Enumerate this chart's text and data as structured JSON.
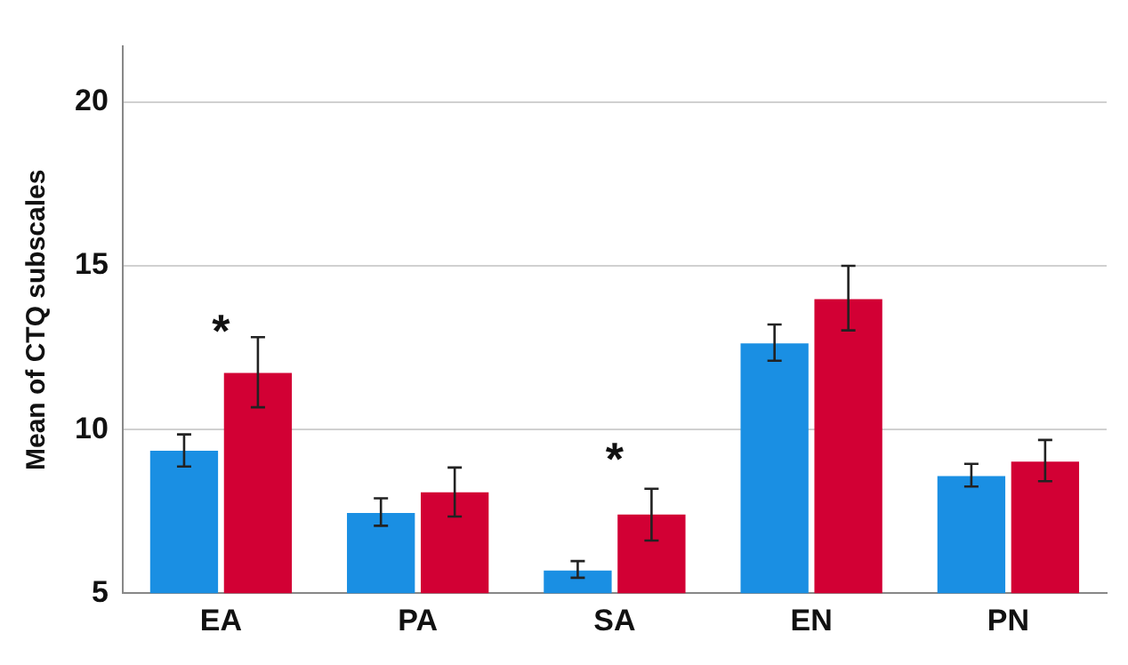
{
  "chart_data": {
    "type": "bar",
    "ylabel": "Mean of CTQ subscales",
    "categories": [
      "EA",
      "PA",
      "SA",
      "EN",
      "PN"
    ],
    "ylim": [
      5,
      21.7
    ],
    "yticks": [
      5,
      10,
      15,
      20
    ],
    "grid": "y",
    "legend": false,
    "series": [
      {
        "color": "#1a8fe3",
        "values": [
          9.35,
          7.45,
          5.69,
          12.63,
          8.58
        ],
        "errors": [
          [
            8.87,
            9.85
          ],
          [
            7.06,
            7.9
          ],
          [
            5.47,
            5.98
          ],
          [
            12.1,
            13.21
          ],
          [
            8.26,
            8.95
          ]
        ]
      },
      {
        "color": "#d20034",
        "values": [
          11.73,
          8.08,
          7.4,
          13.98,
          9.02
        ],
        "errors": [
          [
            10.68,
            12.82
          ],
          [
            7.34,
            8.84
          ],
          [
            6.61,
            8.19
          ],
          [
            13.03,
            15.0
          ],
          [
            8.42,
            9.68
          ]
        ]
      }
    ],
    "annotations": [
      "*",
      "*"
    ]
  }
}
